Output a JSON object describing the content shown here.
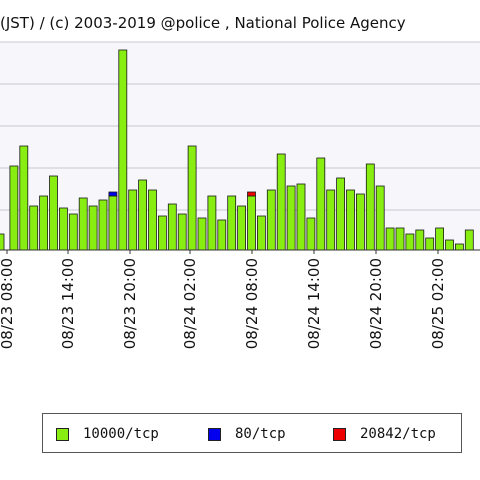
{
  "header": {
    "title": "(JST) / (c) 2003-2019 @police , National Police Agency"
  },
  "chart_data": {
    "type": "bar",
    "stacked": true,
    "title": "(JST) / (c) 2003-2019 @police , National Police Agency",
    "xlabel": "",
    "ylabel": "",
    "grid": true,
    "legend_position": "bottom",
    "x_tick_labels": [
      "08/23 08:00",
      "08/23 14:00",
      "08/23 20:00",
      "08/24 02:00",
      "08/24 08:00",
      "08/24 14:00",
      "08/24 20:00",
      "08/25 02:00"
    ],
    "series": [
      {
        "name": "10000/tcp",
        "color": "#88ee11",
        "values": [
          8,
          42,
          52,
          22,
          27,
          37,
          21,
          18,
          26,
          22,
          25,
          27,
          100,
          30,
          35,
          30,
          17,
          23,
          18,
          52,
          16,
          27,
          15,
          27,
          22,
          27,
          17,
          30,
          48,
          32,
          33,
          16,
          46,
          30,
          36,
          30,
          28,
          43,
          32,
          11,
          11,
          8,
          10,
          6,
          11,
          5,
          3,
          10
        ]
      },
      {
        "name": "80/tcp",
        "color": "#0000ee",
        "values": [
          0,
          0,
          0,
          0,
          0,
          0,
          0,
          0,
          0,
          0,
          0,
          2,
          0,
          0,
          0,
          0,
          0,
          0,
          0,
          0,
          0,
          0,
          0,
          0,
          0,
          0,
          0,
          0,
          0,
          0,
          0,
          0,
          0,
          0,
          0,
          0,
          0,
          0,
          0,
          0,
          0,
          0,
          0,
          0,
          0,
          0,
          0,
          0
        ]
      },
      {
        "name": "20842/tcp",
        "color": "#ee0000",
        "values": [
          0,
          0,
          0,
          0,
          0,
          0,
          0,
          0,
          0,
          0,
          0,
          0,
          0,
          0,
          0,
          0,
          0,
          0,
          0,
          0,
          0,
          0,
          0,
          0,
          0,
          2,
          0,
          0,
          0,
          0,
          0,
          0,
          0,
          0,
          0,
          0,
          0,
          0,
          0,
          0,
          0,
          0,
          0,
          0,
          0,
          0,
          0,
          0
        ]
      }
    ]
  }
}
